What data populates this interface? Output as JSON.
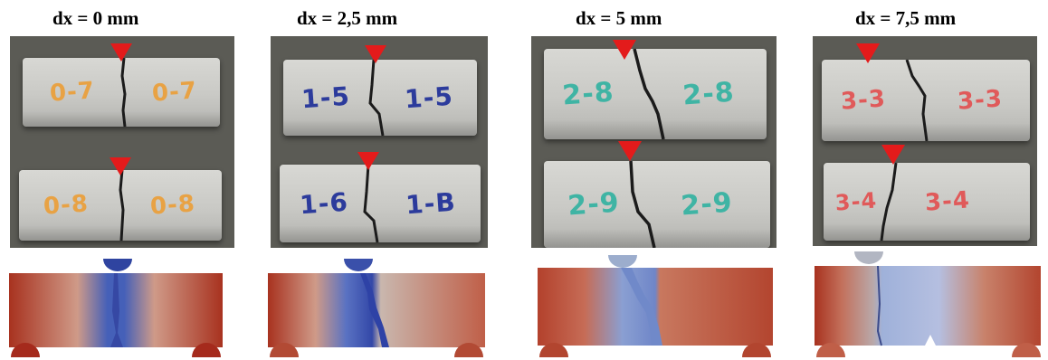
{
  "panels": [
    {
      "label": "dx = 0 mm",
      "photo_colors": {
        "ink": "#e8a244"
      },
      "specimens": [
        {
          "left_mark": "0-7",
          "right_mark": "0-7"
        },
        {
          "left_mark": "0-8",
          "right_mark": "0-8"
        }
      ],
      "sim_colors": {
        "left": "#a8321f",
        "center": "#3a55b0",
        "right": "#a8321f",
        "support": "#a52a1c",
        "loader": "#2f44a0"
      }
    },
    {
      "label": "dx = 2,5 mm",
      "photo_colors": {
        "ink": "#2c3b9c"
      },
      "specimens": [
        {
          "left_mark": "1-5",
          "right_mark": "1-5"
        },
        {
          "left_mark": "1-6",
          "right_mark": "1-B"
        }
      ],
      "sim_colors": {
        "left": "#a8321f",
        "center": "#3a55b0",
        "right": "#c05f48",
        "support": "#b24a34",
        "loader": "#3a50aa"
      }
    },
    {
      "label": "dx = 5 mm",
      "photo_colors": {
        "ink": "#3fb4a4"
      },
      "specimens": [
        {
          "left_mark": "2-8",
          "right_mark": "2-8"
        },
        {
          "left_mark": "2-9",
          "right_mark": "2-9"
        }
      ],
      "sim_colors": {
        "left": "#b3412c",
        "center": "#6f86c8",
        "right": "#b3452f",
        "support": "#b2452f",
        "loader": "#9cadcd"
      }
    },
    {
      "label": "dx = 7,5 mm",
      "photo_colors": {
        "ink": "#e05a5a"
      },
      "specimens": [
        {
          "left_mark": "3-3",
          "right_mark": "3-3"
        },
        {
          "left_mark": "3-4",
          "right_mark": "3-4"
        }
      ],
      "sim_colors": {
        "left": "#a8321f",
        "center": "#9fb1da",
        "right": "#b3452f",
        "support": "#c05f48",
        "loader": "#b2b6c2"
      }
    }
  ],
  "colors": {
    "marker": "#e31b1b",
    "crack": "#1b1b1b"
  }
}
